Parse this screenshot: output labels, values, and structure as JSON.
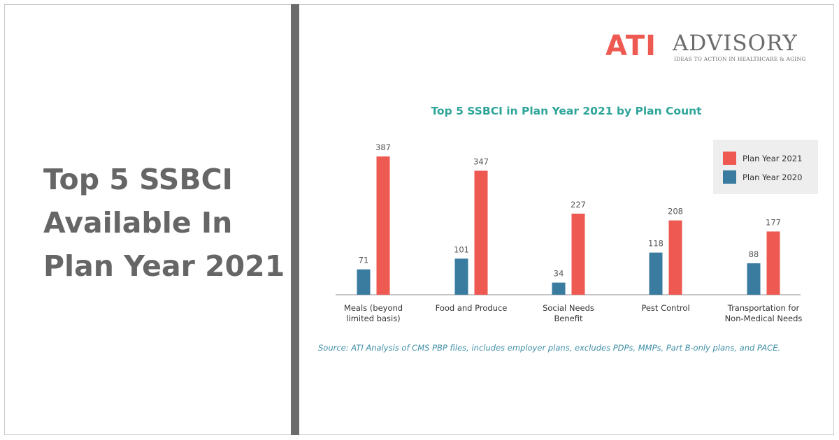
{
  "headline": {
    "lines": [
      "Top 5 SSBCI",
      "Available In",
      "Plan Year 2021"
    ]
  },
  "logo": {
    "mark": "ATI",
    "name": "ADVISORY",
    "tagline": "IDEAS TO ACTION IN HEALTHCARE & AGING"
  },
  "colors": {
    "plan_2021": "#ee5a52",
    "plan_2020": "#3a7ba0",
    "title": "#2fa59a",
    "source": "#3f8fa6",
    "divider": "#6b6b6b"
  },
  "chart_data": {
    "type": "bar",
    "title": "Top 5 SSBCI in Plan Year 2021 by Plan Count",
    "categories": [
      [
        "Meals (beyond",
        "limited basis)"
      ],
      [
        "Food and Produce"
      ],
      [
        "Social Needs",
        "Benefit"
      ],
      [
        "Pest Control"
      ],
      [
        "Transportation for",
        "Non-Medical Needs"
      ]
    ],
    "series": [
      {
        "name": "Plan Year 2020",
        "color": "#3a7ba0",
        "values": [
          71,
          101,
          34,
          118,
          88
        ]
      },
      {
        "name": "Plan Year 2021",
        "color": "#ee5a52",
        "values": [
          387,
          347,
          227,
          208,
          177
        ]
      }
    ],
    "legend_order": [
      "Plan Year 2021",
      "Plan Year 2020"
    ],
    "legend_position": "top-right",
    "ylim": [
      0,
      400
    ],
    "grid": false,
    "data_labels": true,
    "source": "Source: ATI Analysis of CMS PBP files, includes employer plans, excludes PDPs, MMPs, Part B-only plans, and PACE."
  }
}
